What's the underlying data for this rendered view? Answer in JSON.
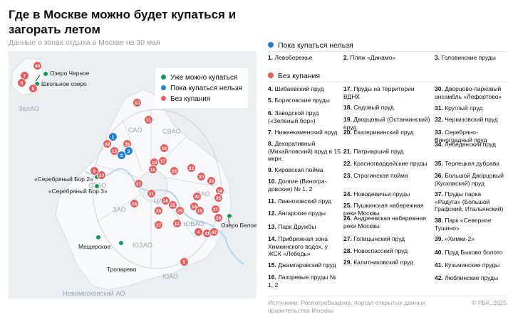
{
  "header": {
    "title": "Где в Москве можно будет купаться и загорать летом",
    "subtitle": "Данные о зонах отдыха в Москве на 30 мая"
  },
  "colors": {
    "allowed": "#11995a",
    "not_yet": "#1f7fd6",
    "no_swimming": "#ec5b5b",
    "map_bg": "#eceff2",
    "moscow_fill": "#f8f9fa"
  },
  "map_legend": {
    "allowed": "Уже можно купаться",
    "not_yet": "Пока купаться нельзя",
    "no_swimming": "Без купания"
  },
  "districts": [
    "ЗелАО",
    "САО",
    "СВАО",
    "СЗАО",
    "ВАО",
    "ЗАО",
    "ЦАО",
    "ЮВАО",
    "ЮЗАО",
    "ЮАО",
    "Новомосковский АО"
  ],
  "places": [
    "Озеро Черное",
    "Школьное озеро",
    "«Серебряный Бор 2»",
    "«Серебряный Бор 3»",
    "Озеро Белое",
    "Мещерское",
    "Тропарево"
  ],
  "markers": [
    {
      "num": "40",
      "kind": "no"
    },
    {
      "num": "7",
      "kind": "no"
    },
    {
      "num": "6",
      "kind": "no"
    },
    {
      "num": "8",
      "kind": "no"
    },
    {
      "num": "10",
      "kind": "no"
    },
    {
      "num": "11",
      "kind": "no"
    },
    {
      "num": "1",
      "kind": "blue"
    },
    {
      "num": "38",
      "kind": "no"
    },
    {
      "num": "13",
      "kind": "no"
    },
    {
      "num": "39",
      "kind": "no"
    },
    {
      "num": "2",
      "kind": "blue"
    },
    {
      "num": "3",
      "kind": "blue"
    },
    {
      "num": "16",
      "kind": "no"
    },
    {
      "num": "19",
      "kind": "no"
    },
    {
      "num": "18",
      "kind": "no"
    },
    {
      "num": "17",
      "kind": "no"
    },
    {
      "num": "9",
      "kind": "no"
    },
    {
      "num": "23",
      "kind": "no"
    },
    {
      "num": "26",
      "kind": "no"
    },
    {
      "num": "22",
      "kind": "no"
    },
    {
      "num": "30",
      "kind": "no"
    },
    {
      "num": "33",
      "kind": "no"
    },
    {
      "num": "31",
      "kind": "no"
    },
    {
      "num": "21",
      "kind": "no"
    },
    {
      "num": "34",
      "kind": "no"
    },
    {
      "num": "35",
      "kind": "no"
    },
    {
      "num": "24",
      "kind": "no"
    },
    {
      "num": "32",
      "kind": "no"
    },
    {
      "num": "20",
      "kind": "no"
    },
    {
      "num": "25",
      "kind": "no"
    },
    {
      "num": "28",
      "kind": "no"
    },
    {
      "num": "29",
      "kind": "no"
    },
    {
      "num": "14",
      "kind": "no"
    },
    {
      "num": "15",
      "kind": "no"
    },
    {
      "num": "37",
      "kind": "no"
    },
    {
      "num": "36",
      "kind": "no"
    },
    {
      "num": "12",
      "kind": "no"
    },
    {
      "num": "27",
      "kind": "no"
    },
    {
      "num": "4",
      "kind": "no"
    },
    {
      "num": "41",
      "kind": "no"
    },
    {
      "num": "42",
      "kind": "no"
    },
    {
      "num": "5",
      "kind": "no"
    }
  ],
  "list": {
    "not_yet_heading": "Пока купаться нельзя",
    "no_swimming_heading": "Без купания",
    "not_yet": [
      {
        "n": "1.",
        "t": "Левобережье"
      },
      {
        "n": "2.",
        "t": "Пляж «Динамо»"
      },
      {
        "n": "3.",
        "t": "Головинские пруды"
      }
    ],
    "col1": [
      {
        "n": "4.",
        "t": "Шибаевский пруд"
      },
      {
        "n": "5.",
        "t": "Борисовские пруды"
      },
      {
        "n": "6.",
        "t": "Заводской пруд («Зеленый бор»)"
      },
      {
        "n": "7.",
        "t": "Нижнекаменский пруд"
      },
      {
        "n": "8.",
        "t": "Декоративный (Михайловский) пруд в 15 мкрн."
      },
      {
        "n": "9.",
        "t": "Кировская пойма"
      },
      {
        "n": "10.",
        "t": "Долгие (Виногра-довские) № 1, 2"
      },
      {
        "n": "11.",
        "t": "Лианозовский пруд"
      },
      {
        "n": "12.",
        "t": "Ангарские пруды"
      },
      {
        "n": "13.",
        "t": "Парк Дружбы"
      },
      {
        "n": "14.",
        "t": "Прибрежная зона Химкинского водох. у ЖСК «Лебедь»"
      },
      {
        "n": "15.",
        "t": "Джамгаровский пруд"
      },
      {
        "n": "16.",
        "t": "Лазоревые пруды № 1, 2"
      }
    ],
    "col2": [
      {
        "n": "17.",
        "t": "Пруды на территории ВДНХ"
      },
      {
        "n": "18.",
        "t": "Садовый пруд"
      },
      {
        "n": "19.",
        "t": "Дворцовый (Останкинский) пруд"
      },
      {
        "n": "20.",
        "t": "Екатерининский пруд"
      },
      {
        "n": "21.",
        "t": "Патриарший пруд"
      },
      {
        "n": "22.",
        "t": "Красногвардейские пруды"
      },
      {
        "n": "23.",
        "t": "Строгинская пойма"
      },
      {
        "n": "24.",
        "t": "Новодевичьи пруды"
      },
      {
        "n": "25.",
        "t": "Пушкинская набережная реки Москвы"
      },
      {
        "n": "26.",
        "t": "Андреевская набережная реки Москвы"
      },
      {
        "n": "27.",
        "t": "Голицынский пруд"
      },
      {
        "n": "28.",
        "t": "Новоспасский пруд"
      },
      {
        "n": "29.",
        "t": "Калитниковский пруд"
      }
    ],
    "col3": [
      {
        "n": "30.",
        "t": "Дворцово-парковый ансамбль «Лефортово»"
      },
      {
        "n": "31.",
        "t": "Круглый пруд"
      },
      {
        "n": "32.",
        "t": "Черкизовский пруд"
      },
      {
        "n": "33.",
        "t": "Серебряно-Виноградный пруд"
      },
      {
        "n": "34.",
        "t": "Лебедянский пруд"
      },
      {
        "n": "35.",
        "t": "Терлецкая дубрава"
      },
      {
        "n": "36.",
        "t": "Большой Дворцовый (Кусковский) пруд"
      },
      {
        "n": "37.",
        "t": "Пруды парка «Радуга» (Большой Графский, Итальянский)"
      },
      {
        "n": "38.",
        "t": "Парк «Северное Тушино»"
      },
      {
        "n": "39.",
        "t": "«Химки-2»"
      },
      {
        "n": "40.",
        "t": "Пруд Быково болото"
      },
      {
        "n": "41.",
        "t": "Кузьминские пруды"
      },
      {
        "n": "42.",
        "t": "Люблинские пруды"
      }
    ]
  },
  "footer": {
    "source": "Источники: Роспотребнадзор, портал открытых данных правительства Москвы",
    "copyright": "© РБК, 2025"
  }
}
